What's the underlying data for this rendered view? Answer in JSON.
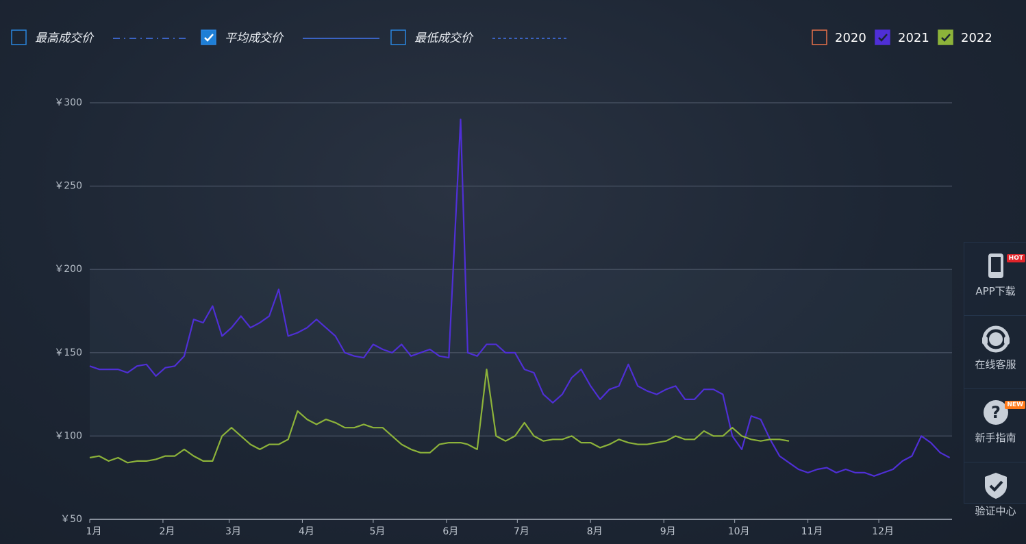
{
  "chart_data": {
    "type": "line",
    "metric_legend": [
      {
        "name": "最高成交价",
        "checked": false,
        "dash": "10 6 2 6"
      },
      {
        "name": "平均成交价",
        "checked": true,
        "dash": ""
      },
      {
        "name": "最低成交价",
        "checked": false,
        "dash": "4 4"
      }
    ],
    "hidden_series": [
      {
        "name": "2020",
        "color": "#e8704a"
      }
    ],
    "x": [
      0,
      4,
      8,
      12,
      16,
      20,
      24,
      28,
      32,
      36,
      40,
      44,
      48,
      52,
      56,
      60,
      64,
      68,
      72,
      76,
      80,
      84,
      88,
      92,
      96,
      100,
      104,
      108,
      112,
      116,
      120,
      124,
      128,
      132,
      136,
      140,
      144,
      148,
      152,
      157,
      160,
      164,
      168,
      172,
      176,
      180,
      184,
      188,
      192,
      196,
      200,
      204,
      208,
      212,
      216,
      220,
      224,
      228,
      232,
      236,
      240,
      244,
      248,
      252,
      256,
      260,
      264,
      268,
      272,
      276,
      280,
      284,
      288,
      292,
      296,
      300,
      304,
      308,
      312,
      316,
      320,
      324,
      328,
      332,
      336,
      340,
      344,
      348,
      352,
      356,
      360,
      364
    ],
    "xlim": [
      0,
      365
    ],
    "xticks": [
      {
        "value": 0,
        "label": "1月"
      },
      {
        "value": 31,
        "label": "2月"
      },
      {
        "value": 59,
        "label": "3月"
      },
      {
        "value": 90,
        "label": "4月"
      },
      {
        "value": 120,
        "label": "5月"
      },
      {
        "value": 151,
        "label": "6月"
      },
      {
        "value": 181,
        "label": "7月"
      },
      {
        "value": 212,
        "label": "8月"
      },
      {
        "value": 243,
        "label": "9月"
      },
      {
        "value": 273,
        "label": "10月"
      },
      {
        "value": 304,
        "label": "11月"
      },
      {
        "value": 334,
        "label": "12月"
      }
    ],
    "ylim": [
      50,
      300
    ],
    "yticks": [
      {
        "value": 50,
        "label": "￥50"
      },
      {
        "value": 100,
        "label": "￥100"
      },
      {
        "value": 150,
        "label": "￥150"
      },
      {
        "value": 200,
        "label": "￥200"
      },
      {
        "value": 250,
        "label": "￥250"
      },
      {
        "value": 300,
        "label": "￥300"
      }
    ],
    "grid": true,
    "series": [
      {
        "name": "2021",
        "color": "#4f2fd6",
        "values": [
          142,
          140,
          140,
          140,
          138,
          142,
          143,
          136,
          141,
          142,
          148,
          170,
          168,
          178,
          160,
          165,
          172,
          165,
          168,
          172,
          188,
          160,
          162,
          165,
          170,
          165,
          160,
          150,
          148,
          147,
          155,
          152,
          150,
          155,
          148,
          150,
          152,
          148,
          147,
          290,
          150,
          148,
          155,
          155,
          150,
          150,
          140,
          138,
          125,
          120,
          125,
          135,
          140,
          130,
          122,
          128,
          130,
          143,
          130,
          127,
          125,
          128,
          130,
          122,
          122,
          128,
          128,
          125,
          100,
          92,
          112,
          110,
          98,
          88,
          84,
          80,
          78,
          80,
          81,
          78,
          80,
          78,
          78,
          76,
          78,
          80,
          85,
          88,
          100,
          96,
          90,
          87
        ]
      },
      {
        "name": "2022",
        "color": "#8db33a",
        "values": [
          87,
          88,
          85,
          87,
          84,
          85,
          85,
          86,
          88,
          88,
          92,
          88,
          85,
          85,
          100,
          105,
          100,
          95,
          92,
          95,
          95,
          98,
          115,
          110,
          107,
          110,
          108,
          105,
          105,
          107,
          105,
          105,
          100,
          95,
          92,
          90,
          90,
          95,
          96,
          96,
          95,
          92,
          140,
          100,
          97,
          100,
          108,
          100,
          97,
          98,
          98,
          100,
          96,
          96,
          93,
          95,
          98,
          96,
          95,
          95,
          96,
          97,
          100,
          98,
          98,
          103,
          100,
          100,
          105,
          100,
          98,
          97,
          98,
          98,
          97,
          null,
          null,
          null,
          null,
          null,
          null,
          null,
          null,
          null,
          null,
          null,
          null,
          null,
          null,
          null,
          null,
          null
        ]
      }
    ]
  },
  "sidebar": [
    {
      "label": "APP下载",
      "badge": "HOT"
    },
    {
      "label": "在线客服"
    },
    {
      "label": "新手指南",
      "badge": "NEW"
    },
    {
      "label": "验证中心"
    }
  ]
}
